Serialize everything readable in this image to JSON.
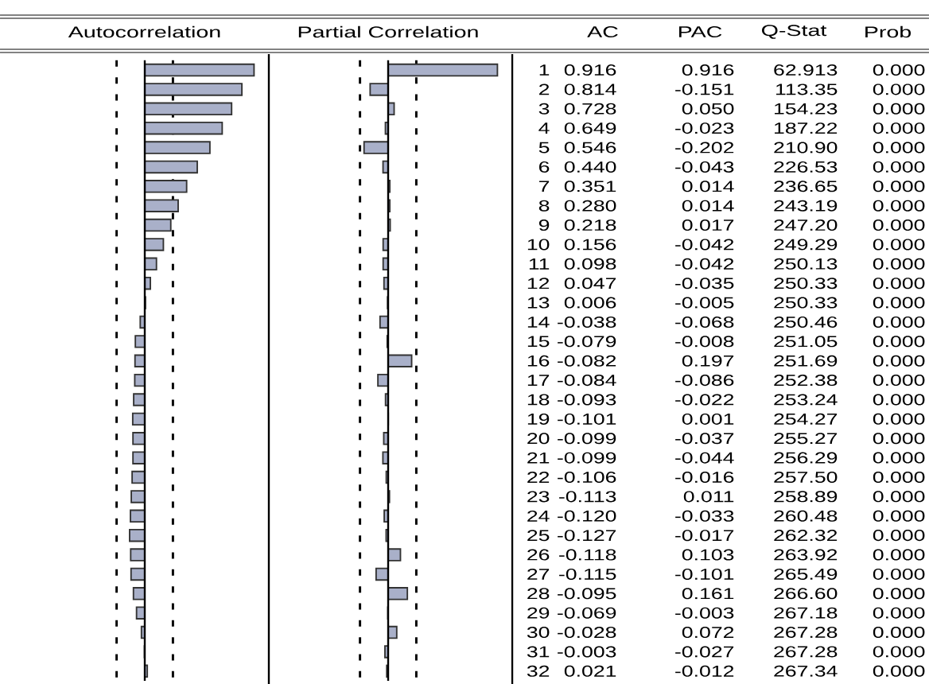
{
  "chart_data": [
    {
      "type": "bar",
      "orientation": "horizontal",
      "title": "Autocorrelation",
      "color": "#a9b0c9",
      "value_labels": [
        "0.916",
        "0.814",
        "0.728",
        "0.649",
        "0.546",
        "0.440",
        "0.351",
        "0.280",
        "0.218",
        "0.156",
        "0.098",
        "0.047",
        "0.006",
        "-0.038",
        "-0.079",
        "-0.082",
        "-0.084",
        "-0.093",
        "-0.101",
        "-0.099",
        "-0.099",
        "-0.106",
        "-0.113",
        "-0.120",
        "-0.127",
        "-0.118",
        "-0.115",
        "-0.095",
        "-0.069",
        "-0.028",
        "-0.003",
        "0.021"
      ],
      "tick_labels": false,
      "categories": [
        "1",
        "2",
        "3",
        "4",
        "5",
        "6",
        "7",
        "8",
        "9",
        "10",
        "11",
        "12",
        "13",
        "14",
        "15",
        "16",
        "17",
        "18",
        "19",
        "20",
        "21",
        "22",
        "23",
        "24",
        "25",
        "26",
        "27",
        "28",
        "29",
        "30",
        "31",
        "32"
      ],
      "values": [
        0.916,
        0.814,
        0.728,
        0.649,
        0.546,
        0.44,
        0.351,
        0.28,
        0.218,
        0.156,
        0.098,
        0.047,
        0.006,
        -0.038,
        -0.079,
        -0.082,
        -0.084,
        -0.093,
        -0.101,
        -0.099,
        -0.099,
        -0.106,
        -0.113,
        -0.12,
        -0.127,
        -0.118,
        -0.115,
        -0.095,
        -0.069,
        -0.028,
        -0.003,
        0.021
      ],
      "ref_lines": [
        {
          "axis": "x",
          "value": -0.236,
          "line_style": "dashed"
        },
        {
          "axis": "x",
          "value": 0.236,
          "line_style": "dashed"
        }
      ]
    },
    {
      "type": "bar",
      "orientation": "horizontal",
      "title": "Partial Correlation",
      "color": "#a9b0c9",
      "value_labels": [
        "0.916",
        "-0.151",
        "0.050",
        "-0.023",
        "-0.202",
        "-0.043",
        "0.014",
        "0.014",
        "0.017",
        "-0.042",
        "-0.042",
        "-0.035",
        "-0.005",
        "-0.068",
        "-0.008",
        "0.197",
        "-0.086",
        "-0.022",
        "0.001",
        "-0.037",
        "-0.044",
        "-0.016",
        "0.011",
        "-0.033",
        "-0.017",
        "0.103",
        "-0.101",
        "0.161",
        "-0.003",
        "0.072",
        "-0.027",
        "-0.012"
      ],
      "tick_labels": "y",
      "categories": [
        "1",
        "2",
        "3",
        "4",
        "5",
        "6",
        "7",
        "8",
        "9",
        "10",
        "11",
        "12",
        "13",
        "14",
        "15",
        "16",
        "17",
        "18",
        "19",
        "20",
        "21",
        "22",
        "23",
        "24",
        "25",
        "26",
        "27",
        "28",
        "29",
        "30",
        "31",
        "32"
      ],
      "values": [
        0.916,
        -0.151,
        0.05,
        -0.023,
        -0.202,
        -0.043,
        0.014,
        0.014,
        0.017,
        -0.042,
        -0.042,
        -0.035,
        -0.005,
        -0.068,
        -0.008,
        0.197,
        -0.086,
        -0.022,
        0.001,
        -0.037,
        -0.044,
        -0.016,
        0.011,
        -0.033,
        -0.017,
        0.103,
        -0.101,
        0.161,
        -0.003,
        0.072,
        -0.027,
        -0.012
      ],
      "ref_lines": [
        {
          "axis": "x",
          "value": -0.236,
          "line_style": "dashed"
        },
        {
          "axis": "x",
          "value": 0.236,
          "line_style": "dashed"
        }
      ]
    },
    {
      "type": "other",
      "annotations": [
        "AC",
        "PAC"
      ]
    },
    {
      "type": "other",
      "title": "Q-Stat",
      "annotations": [
        "62.913",
        "113.35",
        "154.23",
        "187.22",
        "210.90",
        "226.53",
        "236.65",
        "243.19",
        "247.20",
        "249.29",
        "250.13",
        "250.33",
        "250.33",
        "250.46",
        "251.05",
        "251.69",
        "252.38",
        "253.24",
        "254.27",
        "255.27",
        "256.29",
        "257.50",
        "258.89",
        "260.48",
        "262.32",
        "263.92",
        "265.49",
        "266.60",
        "267.18",
        "267.28",
        "267.28",
        "267.34"
      ]
    },
    {
      "type": "other",
      "title": "Prob",
      "annotations": [
        "0.000",
        "0.000",
        "0.000",
        "0.000",
        "0.000",
        "0.000",
        "0.000",
        "0.000",
        "0.000",
        "0.000",
        "0.000",
        "0.000",
        "0.000",
        "0.000",
        "0.000",
        "0.000",
        "0.000",
        "0.000",
        "0.000",
        "0.000",
        "0.000",
        "0.000",
        "0.000",
        "0.000",
        "0.000",
        "0.000",
        "0.000",
        "0.000",
        "0.000",
        "0.000",
        "0.000",
        "0.000"
      ]
    }
  ]
}
